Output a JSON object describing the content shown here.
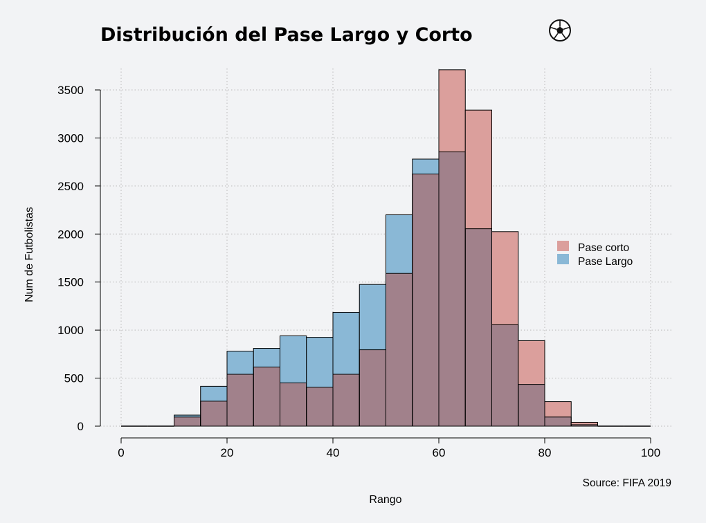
{
  "chart_data": {
    "type": "histogram",
    "title": "Distribución del Pase Largo y Corto",
    "icon": "soccer-ball-icon",
    "xlabel": "Rango",
    "ylabel": "Num de Futbolistas",
    "source": "Source: FIFA 2019",
    "xlim": [
      0,
      100
    ],
    "ylim": [
      0,
      3700
    ],
    "bin_width": 5,
    "x_ticks": [
      0,
      20,
      40,
      60,
      80,
      100
    ],
    "y_ticks": [
      0,
      500,
      1000,
      1500,
      2000,
      2500,
      3000,
      3500
    ],
    "grid": true,
    "legend_position": "right",
    "bin_starts": [
      0,
      5,
      10,
      15,
      20,
      25,
      30,
      35,
      40,
      45,
      50,
      55,
      60,
      65,
      70,
      75,
      80,
      85,
      90,
      95
    ],
    "series": [
      {
        "name": "Pase corto",
        "color": "#db9f9c",
        "values": [
          0,
          0,
          95,
          260,
          540,
          615,
          450,
          405,
          540,
          795,
          1590,
          2625,
          3710,
          3290,
          2025,
          890,
          255,
          40,
          0,
          0
        ]
      },
      {
        "name": "Pase Largo",
        "color": "#8ab8d6",
        "values": [
          0,
          0,
          115,
          415,
          780,
          810,
          940,
          925,
          1185,
          1475,
          2200,
          2780,
          2855,
          2055,
          1055,
          435,
          95,
          15,
          0,
          0
        ]
      }
    ],
    "overlap_color": "#a1818b"
  }
}
